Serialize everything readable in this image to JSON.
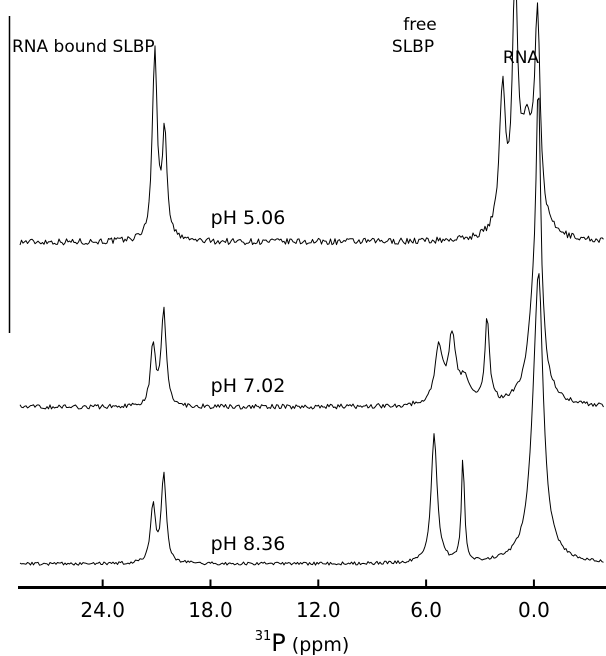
{
  "chart_data": {
    "type": "line",
    "xlabel": {
      "superscript": "31",
      "main": "P",
      "unit": "(ppm)"
    },
    "x_reversed": true,
    "xlim": [
      28.6,
      -3.9
    ],
    "x_ticks": [
      {
        "value": 24,
        "label": "24.0"
      },
      {
        "value": 18,
        "label": "18.0"
      },
      {
        "value": 12,
        "label": "12.0"
      },
      {
        "value": 6,
        "label": "6.0"
      },
      {
        "value": 0,
        "label": "0.0"
      }
    ],
    "grid": false,
    "annotations": [
      {
        "text": "RNA bound SLBP"
      },
      {
        "line1": "free",
        "line2": "SLBP"
      },
      {
        "text": "RNA"
      }
    ],
    "series": [
      {
        "name": "pH 5.06",
        "peaks": [
          {
            "ppm": 21.1,
            "height": 188,
            "width": 0.16
          },
          {
            "ppm": 20.55,
            "height": 104,
            "width": 0.16
          },
          {
            "ppm": 1.75,
            "height": 140,
            "width": 0.2
          },
          {
            "ppm": 1.05,
            "height": 228,
            "width": 0.18
          },
          {
            "ppm": 0.4,
            "height": 100,
            "width": 0.45
          },
          {
            "ppm": -0.2,
            "height": 196,
            "width": 0.18
          }
        ]
      },
      {
        "name": "pH 7.02",
        "peaks": [
          {
            "ppm": 21.2,
            "height": 62,
            "width": 0.16
          },
          {
            "ppm": 20.6,
            "height": 96,
            "width": 0.16
          },
          {
            "ppm": 5.3,
            "height": 56,
            "width": 0.26
          },
          {
            "ppm": 4.55,
            "height": 66,
            "width": 0.25
          },
          {
            "ppm": 3.85,
            "height": 24,
            "width": 0.3
          },
          {
            "ppm": 2.6,
            "height": 86,
            "width": 0.15
          },
          {
            "ppm": -0.1,
            "height": 110,
            "width": 0.45
          },
          {
            "ppm": -0.25,
            "height": 228,
            "width": 0.14
          }
        ]
      },
      {
        "name": "pH 8.36",
        "peaks": [
          {
            "ppm": 21.2,
            "height": 58,
            "width": 0.16
          },
          {
            "ppm": 20.6,
            "height": 88,
            "width": 0.16
          },
          {
            "ppm": 5.55,
            "height": 128,
            "width": 0.2
          },
          {
            "ppm": 3.95,
            "height": 104,
            "width": 0.1
          },
          {
            "ppm": -0.2,
            "height": 200,
            "width": 0.4
          },
          {
            "ppm": -0.3,
            "height": 100,
            "width": 0.22
          }
        ]
      }
    ]
  }
}
